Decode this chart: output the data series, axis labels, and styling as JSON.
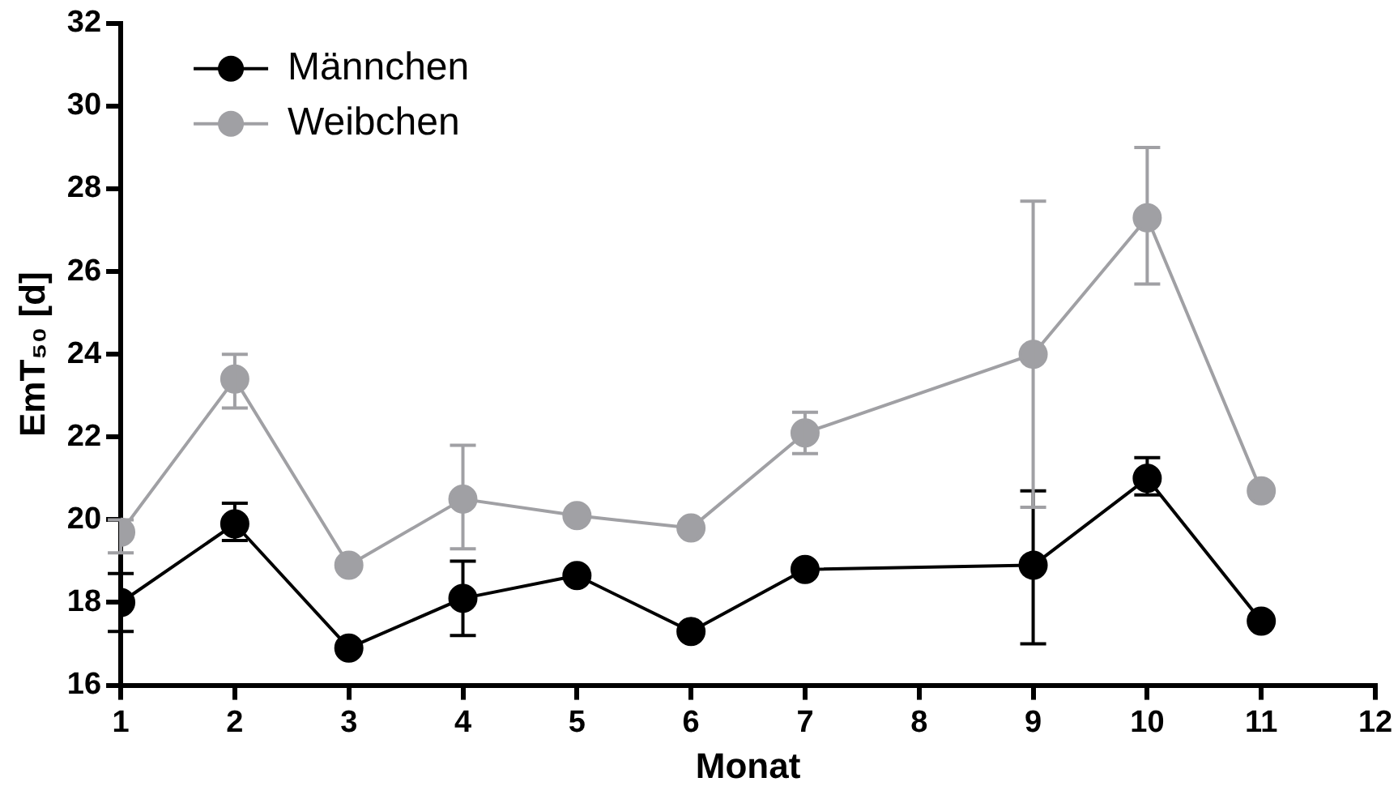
{
  "chart_data": {
    "type": "line",
    "xlabel": "Monat",
    "ylabel": "EmT₅₀ [d]",
    "xlim": [
      1,
      12
    ],
    "xticks": [
      1,
      2,
      3,
      4,
      5,
      6,
      7,
      8,
      9,
      10,
      11,
      12
    ],
    "ylim": [
      16,
      32
    ],
    "yticks": [
      16,
      18,
      20,
      22,
      24,
      26,
      28,
      30,
      32
    ],
    "grid": false,
    "legend": "top left",
    "marker": "circle",
    "line_style": "solid",
    "x": [
      1,
      2,
      3,
      4,
      5,
      6,
      7,
      9,
      10,
      11
    ],
    "series": [
      {
        "name": "Männchen",
        "color": "#000000",
        "values": [
          18.0,
          19.9,
          16.9,
          18.1,
          18.65,
          17.3,
          18.8,
          18.9,
          21.0,
          17.55
        ],
        "errors": [
          [
            17.3,
            18.7
          ],
          [
            19.5,
            20.4
          ],
          null,
          [
            17.2,
            19.0
          ],
          null,
          null,
          null,
          [
            17.0,
            20.7
          ],
          [
            20.6,
            21.5
          ],
          null
        ]
      },
      {
        "name": "Weibchen",
        "color": "#a0a0a4",
        "values": [
          19.7,
          23.4,
          18.9,
          20.5,
          20.1,
          19.8,
          22.1,
          24.0,
          27.3,
          20.7
        ],
        "errors": [
          [
            19.2,
            20.0
          ],
          [
            22.7,
            24.0
          ],
          null,
          [
            19.3,
            21.8
          ],
          null,
          null,
          [
            21.6,
            22.6
          ],
          [
            20.3,
            27.7
          ],
          [
            25.7,
            29.0
          ],
          null
        ]
      }
    ]
  }
}
